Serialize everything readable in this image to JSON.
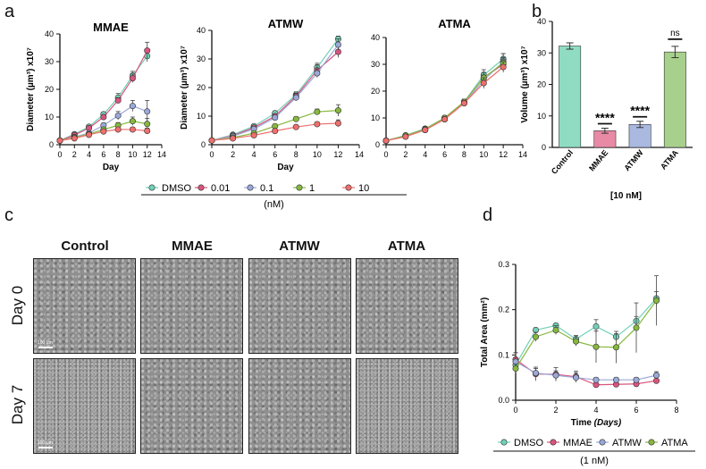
{
  "panels": {
    "a": "a",
    "b": "b",
    "c": "c",
    "d": "d"
  },
  "colors": {
    "DMSO": "#72d1b7",
    "0.01": "#d9557e",
    "0.1": "#9ba9d9",
    "1": "#87b83e",
    "10": "#ef6f6c",
    "bar_control": "#8fdcc2",
    "bar_mmae": "#e88aa5",
    "bar_atmw": "#a9b9e0",
    "bar_atma": "#a8d08d",
    "dmso_d": "#72d1b7",
    "mmae_d": "#d9557e",
    "atmw_d": "#9ba9d9",
    "atma_d": "#87b83e"
  },
  "legend_a": {
    "entries": [
      "DMSO",
      "0.01",
      "0.1",
      "1",
      "10"
    ],
    "unit": "(nM)"
  },
  "legend_d": {
    "entries": [
      "DMSO",
      "MMAE",
      "ATMW",
      "ATMA"
    ],
    "unit": "(1 nM)"
  },
  "micrographs": {
    "columns": [
      "Control",
      "MMAE",
      "ATMW",
      "ATMA"
    ],
    "rows": [
      "Day 0",
      "Day 7"
    ],
    "scale_label": "100 µm"
  },
  "chart_data": [
    {
      "id": "a1",
      "type": "line",
      "title": "MMAE",
      "xlabel": "Day",
      "ylabel": "Diameter (µm³) x10⁷",
      "xlim": [
        0,
        14
      ],
      "ylim": [
        0,
        40
      ],
      "xticks": [
        0,
        2,
        4,
        6,
        8,
        10,
        12,
        14
      ],
      "yticks": [
        0,
        10,
        20,
        30,
        40
      ],
      "x": [
        0,
        2,
        4,
        6,
        8,
        10,
        12
      ],
      "series": [
        {
          "name": "DMSO",
          "values": [
            1.5,
            3.8,
            6.5,
            11,
            17,
            25,
            32
          ],
          "err": [
            0.3,
            0.4,
            0.5,
            0.8,
            1.5,
            1.5,
            2
          ]
        },
        {
          "name": "0.01",
          "values": [
            1.5,
            3.5,
            6,
            10,
            16,
            24,
            34
          ],
          "err": [
            0.3,
            0.4,
            0.5,
            0.8,
            1,
            1.5,
            3
          ]
        },
        {
          "name": "0.1",
          "values": [
            1.5,
            2.8,
            4.2,
            7,
            10.5,
            14,
            12
          ],
          "err": [
            0.3,
            0.4,
            0.5,
            0.8,
            1.5,
            2,
            4
          ]
        },
        {
          "name": "1",
          "values": [
            1.5,
            2.6,
            3.8,
            5.5,
            7,
            8.5,
            7.5
          ],
          "err": [
            0.3,
            0.3,
            0.4,
            0.6,
            1,
            1.5,
            2
          ]
        },
        {
          "name": "10",
          "values": [
            1.5,
            2.3,
            3.6,
            4.8,
            5.5,
            5.5,
            5
          ],
          "err": [
            0.3,
            0.3,
            0.3,
            0.4,
            0.5,
            0.8,
            1
          ]
        }
      ]
    },
    {
      "id": "a2",
      "type": "line",
      "title": "ATMW",
      "xlabel": "Day",
      "ylabel": "Diameter (µm³) x10⁷",
      "xlim": [
        0,
        14
      ],
      "ylim": [
        0,
        40
      ],
      "xticks": [
        0,
        2,
        4,
        6,
        8,
        10,
        12,
        14
      ],
      "yticks": [
        0,
        10,
        20,
        30,
        40
      ],
      "x": [
        0,
        2,
        4,
        6,
        8,
        10,
        12
      ],
      "series": [
        {
          "name": "DMSO",
          "values": [
            1.5,
            3.5,
            6.5,
            11,
            17.5,
            27,
            37
          ],
          "err": [
            0.3,
            0.4,
            0.5,
            0.8,
            1,
            1.5,
            1
          ]
        },
        {
          "name": "0.01",
          "values": [
            1.5,
            3.2,
            6,
            10,
            17,
            26,
            32.5
          ],
          "err": [
            0.3,
            0.4,
            0.5,
            0.8,
            1,
            2,
            2
          ]
        },
        {
          "name": "0.1",
          "values": [
            1.5,
            3,
            5.5,
            9.5,
            16.5,
            25,
            35
          ],
          "err": [
            0.3,
            0.4,
            0.5,
            0.8,
            1,
            1.5,
            2
          ]
        },
        {
          "name": "1",
          "values": [
            1.5,
            2.5,
            4,
            6.5,
            9,
            11.5,
            12
          ],
          "err": [
            0.3,
            0.3,
            0.4,
            0.5,
            0.8,
            1,
            2
          ]
        },
        {
          "name": "10",
          "values": [
            1.5,
            2.2,
            3.3,
            4.8,
            6.2,
            7.2,
            7.5
          ],
          "err": [
            0.3,
            0.3,
            0.3,
            0.4,
            0.5,
            0.8,
            1.2
          ]
        }
      ]
    },
    {
      "id": "a3",
      "type": "line",
      "title": "ATMA",
      "xlabel": "",
      "ylabel": "",
      "xlim": [
        0,
        14
      ],
      "ylim": [
        0,
        40
      ],
      "xticks": [
        0,
        2,
        4,
        6,
        8,
        10,
        12,
        14
      ],
      "yticks": [
        0,
        10,
        20,
        30,
        40
      ],
      "x": [
        0,
        2,
        4,
        6,
        8,
        10,
        12
      ],
      "series": [
        {
          "name": "DMSO",
          "values": [
            1.5,
            3.5,
            6,
            10,
            16,
            26,
            32
          ],
          "err": [
            0.3,
            0.4,
            0.5,
            0.8,
            1,
            2,
            2
          ]
        },
        {
          "name": "0.01",
          "values": [
            1.5,
            3.3,
            5.8,
            10,
            16,
            25,
            30
          ],
          "err": [
            0.3,
            0.4,
            0.5,
            0.8,
            1,
            2,
            2
          ]
        },
        {
          "name": "0.1",
          "values": [
            1.5,
            3.2,
            5.5,
            9.5,
            15.5,
            24,
            31
          ],
          "err": [
            0.3,
            0.4,
            0.5,
            0.8,
            1,
            2,
            3
          ]
        },
        {
          "name": "1",
          "values": [
            1.5,
            3.4,
            5.8,
            10,
            16,
            25,
            30.5
          ],
          "err": [
            0.3,
            0.4,
            0.5,
            0.8,
            1,
            2,
            2
          ]
        },
        {
          "name": "10",
          "values": [
            1.5,
            3,
            5.5,
            9.5,
            15.5,
            23,
            29
          ],
          "err": [
            0.3,
            0.4,
            0.5,
            0.8,
            1,
            2,
            2
          ]
        }
      ]
    },
    {
      "id": "b",
      "type": "bar",
      "title": "",
      "xlabel": "[10 nM]",
      "ylabel": "Volume (µm³) x10⁷",
      "ylim": [
        0,
        40
      ],
      "yticks": [
        0,
        10,
        20,
        30,
        40
      ],
      "categories": [
        "Control",
        "MMAE",
        "ATMW",
        "ATMA"
      ],
      "values": [
        32.2,
        5.3,
        7.3,
        30.3
      ],
      "err": [
        1,
        0.8,
        1,
        1.8
      ],
      "annotations": [
        "",
        "****",
        "****",
        "ns"
      ]
    },
    {
      "id": "d",
      "type": "line",
      "title": "",
      "xlabel": "Time (Days)",
      "ylabel": "Total Area (mm²)",
      "xlim": [
        0,
        8
      ],
      "ylim": [
        0,
        0.3
      ],
      "xticks": [
        0,
        2,
        4,
        6,
        8
      ],
      "yticks": [
        0.0,
        0.1,
        0.2,
        0.3
      ],
      "ytick_labels": [
        "0.0",
        "0.1",
        "0.2",
        "0.3"
      ],
      "x": [
        0,
        1,
        2,
        3,
        4,
        5,
        6,
        7
      ],
      "series": [
        {
          "name": "DMSO",
          "values": [
            0.078,
            0.155,
            0.165,
            0.135,
            0.163,
            0.14,
            0.175,
            0.225
          ],
          "err": [
            0.01,
            0.005,
            0.004,
            0.008,
            0.015,
            0.007,
            0.01,
            0.015
          ]
        },
        {
          "name": "MMAE",
          "values": [
            0.09,
            0.058,
            0.057,
            0.052,
            0.034,
            0.035,
            0.036,
            0.043
          ],
          "err": [
            0.015,
            0.015,
            0.015,
            0.012,
            0.004,
            0.004,
            0.004,
            0.004
          ]
        },
        {
          "name": "ATMW",
          "values": [
            0.085,
            0.06,
            0.055,
            0.05,
            0.045,
            0.045,
            0.045,
            0.055
          ],
          "err": [
            0.02,
            0.01,
            0.01,
            0.01,
            0.005,
            0.005,
            0.005,
            0.008
          ]
        },
        {
          "name": "ATMA",
          "values": [
            0.07,
            0.14,
            0.155,
            0.13,
            0.118,
            0.117,
            0.16,
            0.22
          ],
          "err": [
            0.01,
            0.01,
            0.01,
            0.01,
            0.035,
            0.035,
            0.055,
            0.055
          ]
        }
      ]
    }
  ]
}
